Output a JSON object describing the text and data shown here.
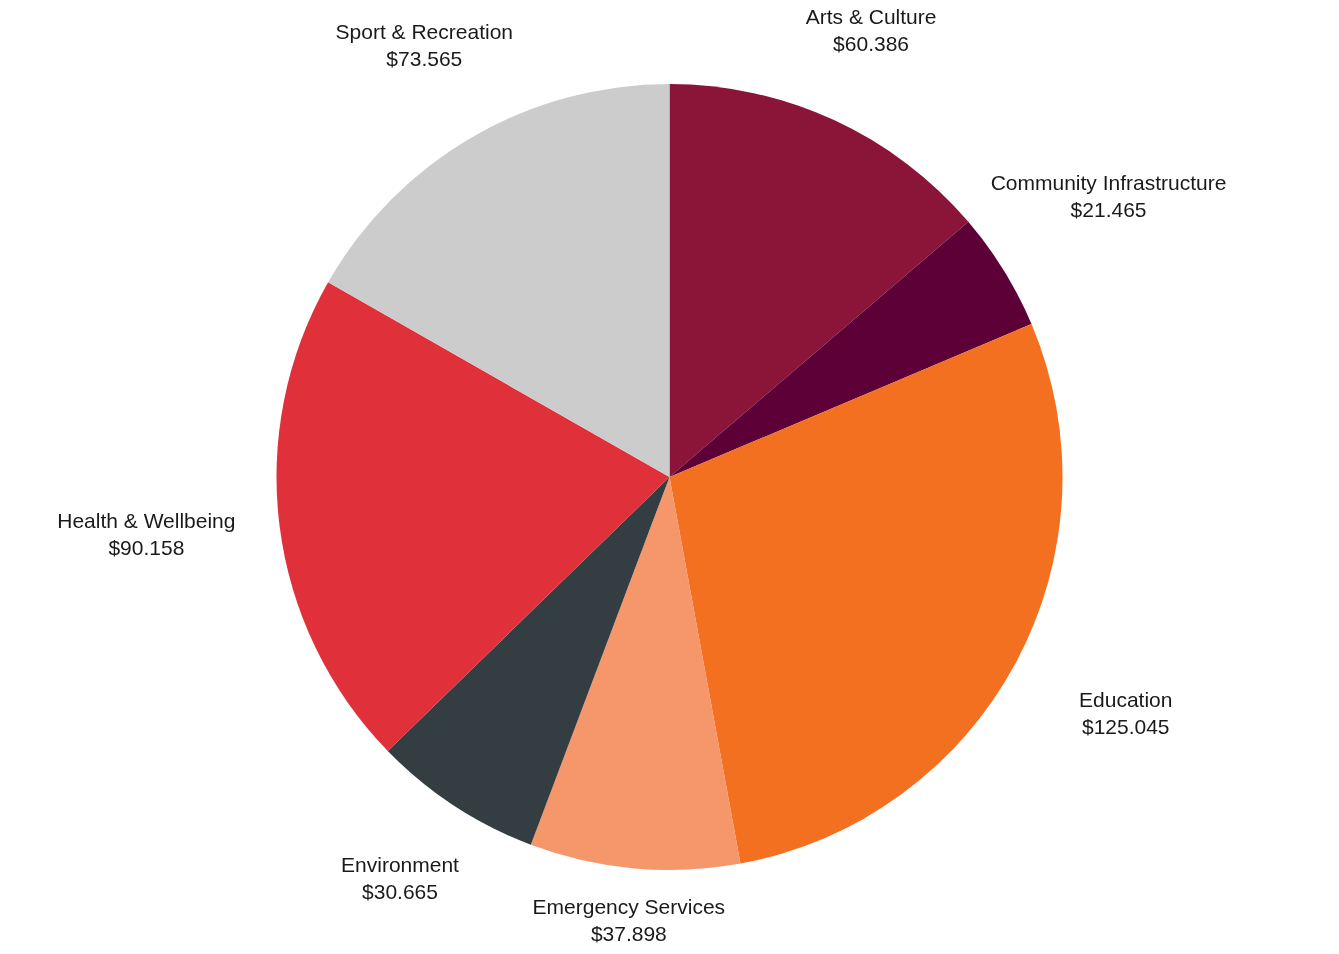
{
  "chart_data": {
    "type": "pie",
    "categories": [
      "Arts & Culture",
      "Community Infrastructure",
      "Education",
      "Emergency Services",
      "Environment",
      "Health & Wellbeing",
      "Sport & Recreation"
    ],
    "values": [
      60.386,
      21.465,
      125.045,
      37.898,
      30.665,
      90.158,
      73.565
    ],
    "value_labels": [
      "$60.386",
      "$21.465",
      "$125.045",
      "$37.898",
      "$30.665",
      "$90.158",
      "$73.565"
    ],
    "colors": [
      "#8a1538",
      "#5c0037",
      "#f37021",
      "#f5966b",
      "#333d42",
      "#e0313b",
      "#cbcccb"
    ]
  }
}
